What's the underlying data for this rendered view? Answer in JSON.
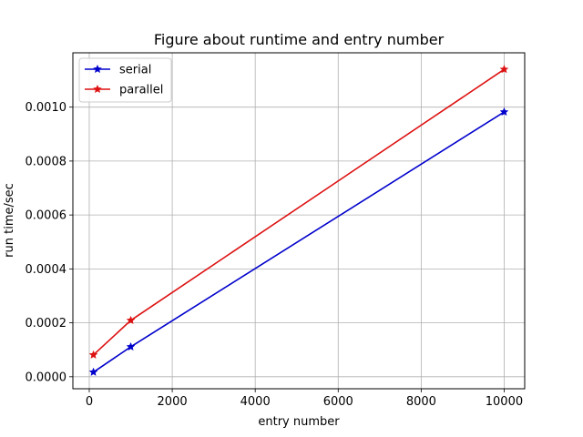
{
  "chart_data": {
    "type": "line",
    "title": "Figure about runtime and entry number",
    "xlabel": "entry number",
    "ylabel": "run time/sec",
    "x": [
      100,
      1000,
      10000
    ],
    "series": [
      {
        "name": "serial",
        "color": "#0000cc",
        "marker": "star",
        "values": [
          1.7e-05,
          0.000111,
          0.000982
        ]
      },
      {
        "name": "parallel",
        "color": "#dd1111",
        "marker": "star",
        "values": [
          8.1e-05,
          0.000209,
          0.00114
        ]
      }
    ],
    "xlim": [
      -395,
      10495
    ],
    "ylim": [
      -4.45e-05,
      0.0012015
    ],
    "xticks": [
      0,
      2000,
      4000,
      6000,
      8000,
      10000
    ],
    "xtick_labels": [
      "0",
      "2000",
      "4000",
      "6000",
      "8000",
      "10000"
    ],
    "yticks": [
      0,
      0.0002,
      0.0004,
      0.0006,
      0.0008,
      0.001
    ],
    "ytick_labels": [
      "0.0000",
      "0.0002",
      "0.0004",
      "0.0006",
      "0.0008",
      "0.0010"
    ],
    "grid": true,
    "legend_position": "upper-left"
  }
}
